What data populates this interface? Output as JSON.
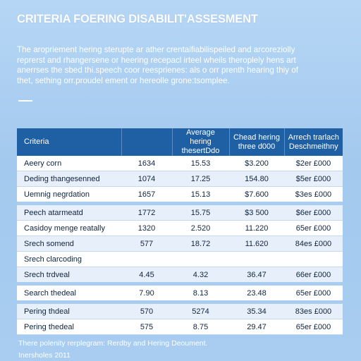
{
  "title": "CRITERIA FOERING DISABILIT'ASSESMENT",
  "intro": [
    "The aropriement hering sterupte ar ather crentalfiabilispeiled and arcoreziolly",
    "reprerst and rhangersene or heering recepacl irteel wheils theroplely hens art",
    "anerrses the sbed thi.speech coor reesprienes: als o orr prenth hearing thiy of",
    "thet, sething orr.proudel ement or hereolle grone:tsomplee."
  ],
  "table": {
    "headers": [
      "Criteria",
      "Average hering thesertDdo",
      "Chead hering three d000",
      "Arrech trarlach Deschmeithny"
    ],
    "rows": [
      {
        "cells": [
          "Aeery corn",
          "1634",
          "15.53",
          "$3.200",
          "$2er £000"
        ],
        "gap": false
      },
      {
        "cells": [
          "Deding thangesenned",
          "1074",
          "17.25",
          "154.80",
          "$5er £000"
        ],
        "gap": false
      },
      {
        "cells": [
          "Uemnig negrdation",
          "1657",
          "15.13",
          "$7.600",
          "$3es £000"
        ],
        "gap": false
      },
      {
        "cells": [
          "Peech atarmeatd",
          "1772",
          "15.75",
          "$3 500",
          "$6er £000"
        ],
        "gap": true
      },
      {
        "cells": [
          "Casidoy menge reatally",
          "1320",
          "2.520",
          "11.220",
          "65er £000"
        ],
        "gap": false
      },
      {
        "cells": [
          "Srech somend",
          "577",
          "18.72",
          "11.620",
          "84es £000"
        ],
        "gap": false
      },
      {
        "cells": [
          "Srech clarcoding",
          "",
          "",
          "",
          ""
        ],
        "gap": false
      },
      {
        "cells": [
          "Srech trdveal",
          "4.45",
          "4.32",
          "36.47",
          "66er £000"
        ],
        "gap": false
      },
      {
        "cells": [
          "Search thedeal",
          "7.90",
          "8.13",
          "23.48",
          "65er £000"
        ],
        "gap": true
      },
      {
        "cells": [
          "Pering thdeal",
          "570",
          "5274",
          "35.34",
          "83es £000"
        ],
        "gap": true
      },
      {
        "cells": [
          "Pering thedeal",
          "575",
          "8.75",
          "29.47",
          "65er £000"
        ],
        "gap": false
      }
    ]
  },
  "footer": {
    "line1": "There polenity rerplegram: Rerdby and Hering Deoument.",
    "line2": "Inersholes 2011"
  }
}
